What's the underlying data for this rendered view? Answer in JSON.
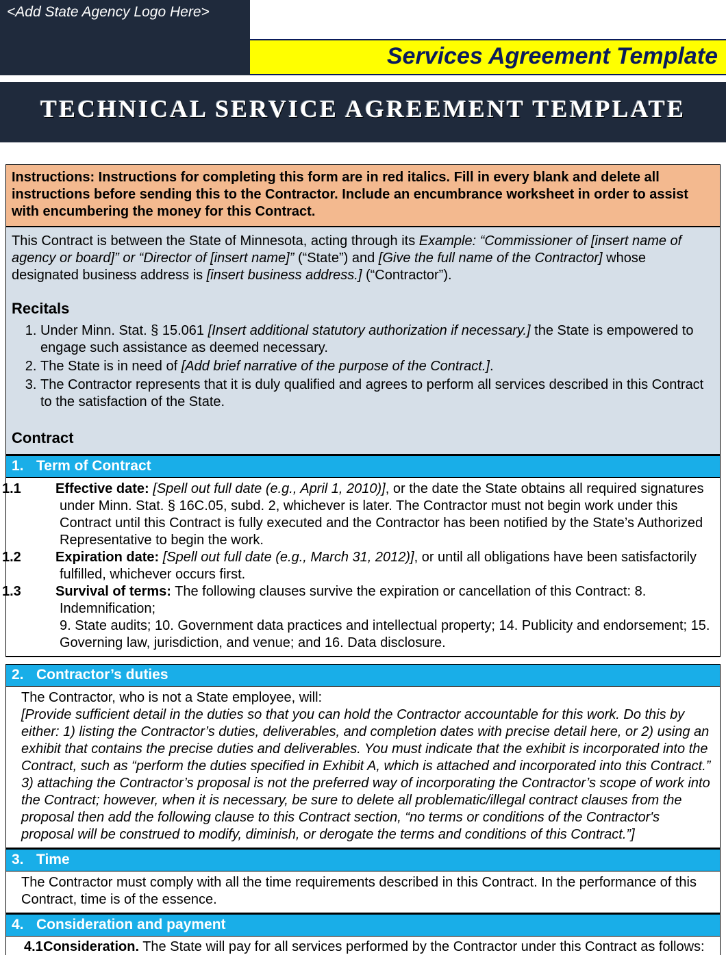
{
  "colors": {
    "dark_header": "#1f2a3c",
    "yellow_band": "#ffff00",
    "yellow_text": "#0a1b5c",
    "instructions_bg": "#f3b98f",
    "preamble_bg": "#d6dfe8",
    "section_bar": "#19aee8",
    "border": "#000000",
    "page_bg": "#ffffff"
  },
  "header": {
    "logo_placeholder": "<Add State Agency Logo Here>",
    "yellow_title": "Services Agreement Template",
    "main_title": "TECHNICAL SERVICE AGREEMENT TEMPLATE"
  },
  "instructions": "Instructions: Instructions for completing this form are in red italics. Fill in every blank and delete all instructions before sending this to the Contractor. Include an encumbrance worksheet in order to assist with encumbering the money for this Contract.",
  "preamble": {
    "html": "This Contract is between the State of Minnesota, acting through its <em>Example: “Commissioner of [insert name of agency or board]” or “Director of [insert name]”</em> (“State”) and <em>[Give the full name of the Contractor]</em> whose designated business address is <em>[insert business address.]</em> (“Contractor”)."
  },
  "recitals": {
    "heading": "Recitals",
    "items": [
      "Under Minn. Stat. § 15.061 <em>[Insert additional statutory authorization if necessary.]</em> the State is empowered to engage such assistance as deemed necessary.",
      "The State is in need of <em>[Add brief narrative of the purpose of the Contract.]</em>.",
      "The Contractor represents that it is duly qualified and agrees to perform all services described in this Contract to the satisfaction of the State."
    ]
  },
  "contract_heading": "Contract",
  "sections": [
    {
      "num": "1.",
      "title": "Term of Contract",
      "clauses": [
        {
          "num": "1.1",
          "label": "Effective date:",
          "body": " <em>[Spell out full date (e.g., April 1, 2010)]</em>, or the date the State obtains all required signatures under Minn. Stat. § 16C.05, subd. 2, whichever is later. The Contractor must not begin work under this Contract until this Contract is fully executed and the Contractor has been notified by the State’s Authorized Representative to begin the work."
        },
        {
          "num": "1.2",
          "label": "Expiration date:",
          "body": " <em>[Spell out full date (e.g., March 31, 2012)]</em>, or until all obligations have been satisfactorily fulfilled, whichever occurs first."
        },
        {
          "num": "1.3",
          "label": "Survival of terms:",
          "body": " The following clauses survive the expiration or cancellation of this Contract: 8. Indemnification;<br>9. State audits; 10. Government data practices and intellectual property; 14. Publicity and endorsement; 15. Governing law, jurisdiction, and venue; and 16. Data disclosure."
        }
      ]
    },
    {
      "num": "2.",
      "title": "Contractor’s duties",
      "body_html": "The Contractor, who is not a State employee, will:<br><em>[Provide sufficient detail in the duties so that you can hold the Contractor accountable for this work. Do this by either: 1) listing the Contractor’s duties, deliverables, and completion dates with precise detail here, or 2) using an exhibit that contains the precise duties and deliverables. You must indicate that the exhibit is incorporated into the Contract, such as “perform the duties specified in Exhibit A, which is attached and incorporated into this Contract.” 3) attaching the Contractor’s proposal is not the preferred way of incorporating the Contractor’s scope of work into the Contract; however, when it is necessary, be sure to delete all problematic/illegal contract clauses from the proposal then add the following clause to this Contract section, “no terms or conditions of the Contractor's proposal will be construed to modify, diminish, or derogate the terms and conditions of this Contract.”]</em>"
    },
    {
      "num": "3.",
      "title": "Time",
      "body_html": "The Contractor must comply with all the time requirements described in this Contract. In the performance of this Contract, time is of the essence."
    },
    {
      "num": "4.",
      "title": "Consideration and payment",
      "clause41": {
        "num": "4.1",
        "label": "Consideration.",
        "body": " The State will pay for all services performed by the Contractor under this Contract as follows:"
      }
    }
  ]
}
